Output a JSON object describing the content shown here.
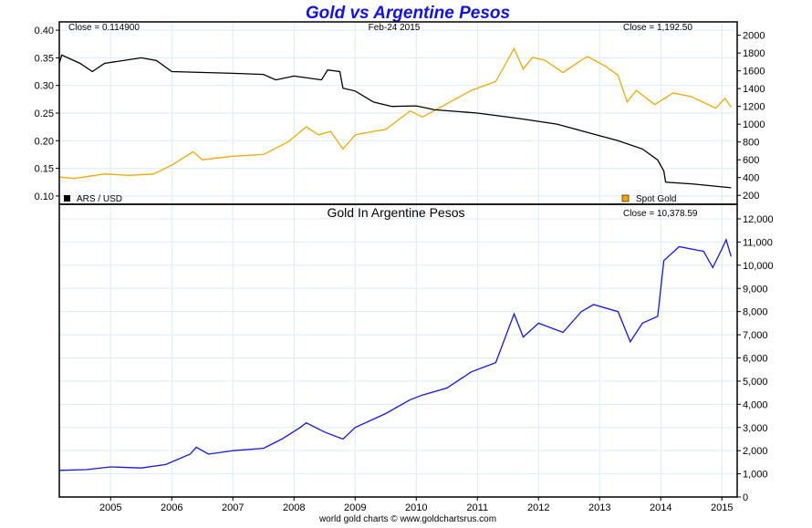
{
  "title": "Gold vs Argentine Pesos",
  "date_label": "Feb-24  2015",
  "footer": "world gold charts © www.goldchartsrus.com",
  "colors": {
    "title": "#1010f0",
    "ars": "#000000",
    "gold": "#f5a800",
    "gold_ars": "#1414f5",
    "grid": "#dcebf5"
  },
  "chart_data": [
    {
      "type": "line",
      "panel": "top",
      "close_left": "Close = 0.114900",
      "close_right": "Close = 1,192.50",
      "legend": [
        {
          "label": "ARS / USD",
          "color": "#000000",
          "placement": "bottom-left"
        },
        {
          "label": "Spot Gold",
          "color": "#f5a800",
          "placement": "bottom-right"
        }
      ],
      "xlim": [
        2004.16,
        2015.25
      ],
      "x_ticks": [
        "2005",
        "2006",
        "2007",
        "2008",
        "2009",
        "2010",
        "2011",
        "2012",
        "2013",
        "2014",
        "2015"
      ],
      "ylim_left": [
        0.085,
        0.415
      ],
      "y_ticks_left": [
        "0.10",
        "0.15",
        "0.20",
        "0.25",
        "0.30",
        "0.35",
        "0.40"
      ],
      "ylim_right": [
        100,
        2150
      ],
      "y_ticks_right": [
        "200",
        "400",
        "600",
        "800",
        "1000",
        "1200",
        "1400",
        "1600",
        "1800",
        "2000"
      ],
      "grid": true,
      "series": [
        {
          "name": "ARS / USD",
          "axis": "left",
          "points": [
            [
              2004.16,
              0.34
            ],
            [
              2004.2,
              0.355
            ],
            [
              2004.5,
              0.34
            ],
            [
              2004.7,
              0.325
            ],
            [
              2004.9,
              0.34
            ],
            [
              2005.5,
              0.35
            ],
            [
              2005.75,
              0.345
            ],
            [
              2006.0,
              0.325
            ],
            [
              2007.0,
              0.322
            ],
            [
              2007.5,
              0.32
            ],
            [
              2007.7,
              0.31
            ],
            [
              2008.0,
              0.317
            ],
            [
              2008.45,
              0.31
            ],
            [
              2008.55,
              0.328
            ],
            [
              2008.75,
              0.325
            ],
            [
              2008.8,
              0.295
            ],
            [
              2009.0,
              0.29
            ],
            [
              2009.3,
              0.27
            ],
            [
              2009.6,
              0.262
            ],
            [
              2010.0,
              0.263
            ],
            [
              2010.3,
              0.256
            ],
            [
              2011.0,
              0.25
            ],
            [
              2011.7,
              0.24
            ],
            [
              2012.3,
              0.23
            ],
            [
              2012.8,
              0.215
            ],
            [
              2013.3,
              0.2
            ],
            [
              2013.7,
              0.185
            ],
            [
              2013.95,
              0.165
            ],
            [
              2014.05,
              0.145
            ],
            [
              2014.08,
              0.125
            ],
            [
              2014.5,
              0.122
            ],
            [
              2015.15,
              0.1149
            ]
          ]
        },
        {
          "name": "Spot Gold",
          "axis": "right",
          "points": [
            [
              2004.16,
              405
            ],
            [
              2004.4,
              390
            ],
            [
              2004.9,
              440
            ],
            [
              2005.3,
              425
            ],
            [
              2005.7,
              440
            ],
            [
              2006.0,
              540
            ],
            [
              2006.35,
              690
            ],
            [
              2006.5,
              600
            ],
            [
              2007.0,
              640
            ],
            [
              2007.5,
              660
            ],
            [
              2007.9,
              800
            ],
            [
              2008.2,
              970
            ],
            [
              2008.4,
              880
            ],
            [
              2008.6,
              920
            ],
            [
              2008.8,
              720
            ],
            [
              2009.0,
              880
            ],
            [
              2009.3,
              920
            ],
            [
              2009.5,
              940
            ],
            [
              2009.9,
              1150
            ],
            [
              2010.1,
              1080
            ],
            [
              2010.5,
              1230
            ],
            [
              2010.9,
              1380
            ],
            [
              2011.3,
              1480
            ],
            [
              2011.6,
              1850
            ],
            [
              2011.75,
              1620
            ],
            [
              2011.9,
              1750
            ],
            [
              2012.1,
              1720
            ],
            [
              2012.4,
              1580
            ],
            [
              2012.7,
              1720
            ],
            [
              2012.8,
              1760
            ],
            [
              2013.1,
              1650
            ],
            [
              2013.3,
              1550
            ],
            [
              2013.45,
              1250
            ],
            [
              2013.6,
              1380
            ],
            [
              2013.9,
              1220
            ],
            [
              2014.2,
              1350
            ],
            [
              2014.5,
              1310
            ],
            [
              2014.9,
              1180
            ],
            [
              2015.05,
              1290
            ],
            [
              2015.15,
              1192.5
            ]
          ]
        }
      ]
    },
    {
      "type": "line",
      "panel": "bottom",
      "title": "Gold In Argentine Pesos",
      "close_right": "Close = 10,378.59",
      "xlim": [
        2004.16,
        2015.25
      ],
      "ylim": [
        0,
        12000
      ],
      "y_ticks": [
        "0",
        "1,000",
        "2,000",
        "3,000",
        "4,000",
        "5,000",
        "6,000",
        "7,000",
        "8,000",
        "9,000",
        "10,000",
        "11,000",
        "12,000"
      ],
      "grid": true,
      "series": [
        {
          "points": [
            [
              2004.16,
              1150
            ],
            [
              2004.6,
              1180
            ],
            [
              2005.0,
              1300
            ],
            [
              2005.5,
              1250
            ],
            [
              2005.9,
              1400
            ],
            [
              2006.3,
              1850
            ],
            [
              2006.4,
              2150
            ],
            [
              2006.6,
              1850
            ],
            [
              2007.0,
              2000
            ],
            [
              2007.5,
              2100
            ],
            [
              2007.8,
              2500
            ],
            [
              2008.1,
              3000
            ],
            [
              2008.2,
              3200
            ],
            [
              2008.5,
              2800
            ],
            [
              2008.8,
              2500
            ],
            [
              2009.0,
              3000
            ],
            [
              2009.5,
              3600
            ],
            [
              2009.9,
              4200
            ],
            [
              2010.1,
              4400
            ],
            [
              2010.5,
              4700
            ],
            [
              2010.9,
              5400
            ],
            [
              2011.3,
              5800
            ],
            [
              2011.6,
              7900
            ],
            [
              2011.75,
              6900
            ],
            [
              2012.0,
              7500
            ],
            [
              2012.4,
              7100
            ],
            [
              2012.7,
              8000
            ],
            [
              2012.9,
              8300
            ],
            [
              2013.3,
              8000
            ],
            [
              2013.5,
              6700
            ],
            [
              2013.7,
              7500
            ],
            [
              2013.95,
              7800
            ],
            [
              2014.05,
              10200
            ],
            [
              2014.3,
              10800
            ],
            [
              2014.7,
              10600
            ],
            [
              2014.85,
              9900
            ],
            [
              2015.0,
              10700
            ],
            [
              2015.07,
              11100
            ],
            [
              2015.15,
              10378.59
            ]
          ]
        }
      ]
    }
  ]
}
